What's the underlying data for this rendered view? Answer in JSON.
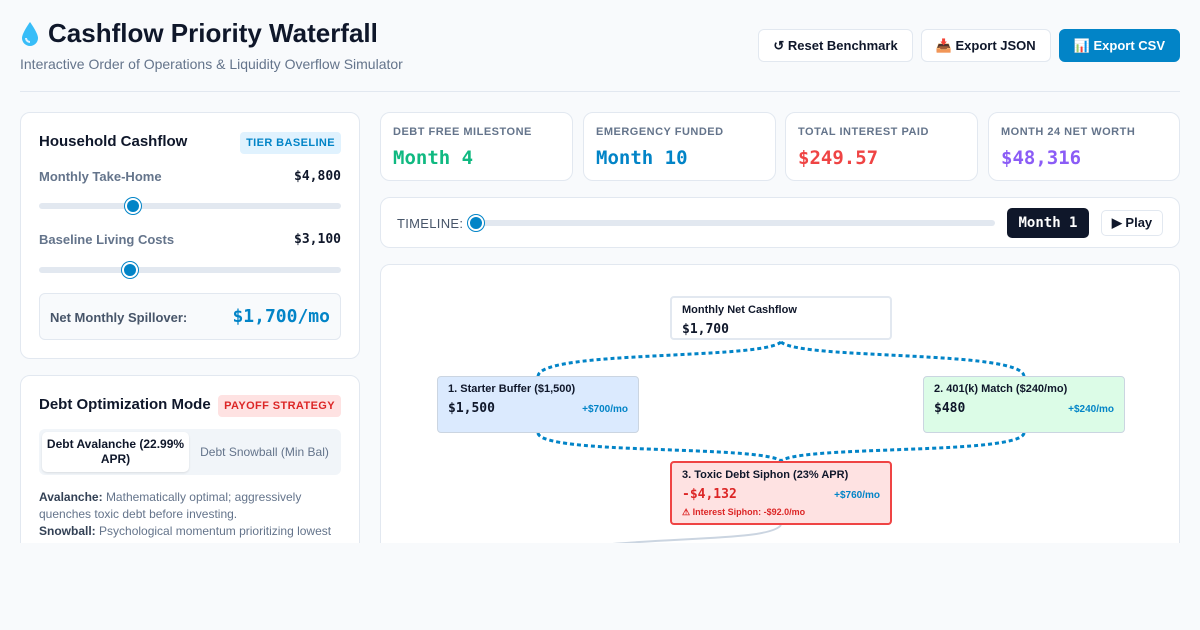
{
  "header": {
    "title": "Cashflow Priority Waterfall",
    "subtitle": "Interactive Order of Operations & Liquidity Overflow Simulator",
    "buttons": {
      "reset": "↺ Reset Benchmark",
      "export_json": "📥 Export JSON",
      "export_csv": "📊 Export CSV"
    }
  },
  "household": {
    "title": "Household Cashflow",
    "badge": "TIER BASELINE",
    "take_home_label": "Monthly Take-Home",
    "take_home_value": "$4,800",
    "take_home_level": 0.31,
    "living_label": "Baseline Living Costs",
    "living_value": "$3,100",
    "living_level": 0.3,
    "spill_label": "Net Monthly Spillover:",
    "spill_value": "$1,700/mo"
  },
  "debt": {
    "title": "Debt Optimization Mode",
    "badge": "PAYOFF STRATEGY",
    "options": {
      "avalanche": "Debt Avalanche (22.99% APR)",
      "snowball": "Debt Snowball (Min Bal)"
    },
    "avalanche_label": "Avalanche:",
    "avalanche_desc": "Mathematically optimal; aggressively quenches toxic debt before investing.",
    "snowball_label": "Snowball:",
    "snowball_desc": "Psychological momentum prioritizing lowest balance first."
  },
  "stats": [
    {
      "label": "DEBT FREE MILESTONE",
      "value": "Month 4",
      "color": "#10b981"
    },
    {
      "label": "EMERGENCY FUNDED",
      "value": "Month 10",
      "color": "#0284c7"
    },
    {
      "label": "TOTAL INTEREST PAID",
      "value": "$249.57",
      "color": "#ef4444"
    },
    {
      "label": "MONTH 24 NET WORTH",
      "value": "$48,316",
      "color": "#8b5cf6"
    }
  ],
  "timeline": {
    "label": "TIMELINE:",
    "month": "Month 1",
    "play": "▶ Play",
    "level": 0
  },
  "flow": {
    "root": {
      "title": "Monthly Net Cashflow",
      "value": "$1,700"
    },
    "buffer": {
      "title": "1. Starter Buffer ($1,500)",
      "value": "$1,500",
      "rate": "+$700/mo"
    },
    "match": {
      "title": "2. 401(k) Match ($240/mo)",
      "value": "$480",
      "rate": "+$240/mo"
    },
    "debt": {
      "title": "3. Toxic Debt Siphon (23% APR)",
      "value": "-$4,132",
      "rate": "+$760/mo",
      "warning": "⚠ Interest Siphon: -$92.0/mo"
    }
  },
  "colors": {
    "accent": "#0284c7",
    "danger": "#ef4444",
    "success": "#10b981",
    "purple": "#8b5cf6"
  }
}
